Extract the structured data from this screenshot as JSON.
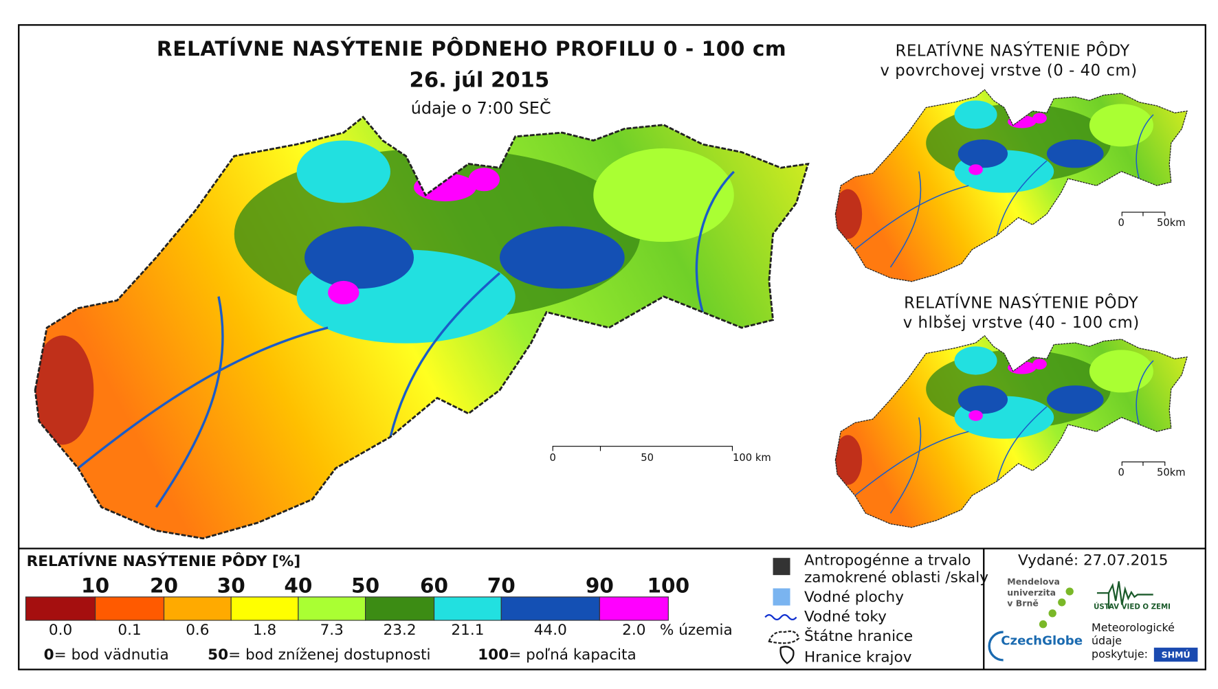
{
  "title": "RELATÍVNE NASÝTENIE PÔDNEHO PROFILU 0 - 100 cm",
  "date": "26. júl 2015",
  "time_note": "údaje o 7:00 SEČ",
  "main_scale": [
    "0",
    "50",
    "100 km"
  ],
  "insets": [
    {
      "title": "RELATÍVNE NASÝTENIE PÔDY",
      "subtitle": "v povrchovej vrstve (0 - 40 cm)",
      "scale": [
        "0",
        "50km"
      ]
    },
    {
      "title": "RELATÍVNE NASÝTENIE PÔDY",
      "subtitle": "v hlbšej vrstve (40 - 100 cm)",
      "scale": [
        "0",
        "50km"
      ]
    }
  ],
  "legend": {
    "title": "RELATÍVNE NASÝTENIE PÔDY [%]",
    "breaks": [
      "10",
      "20",
      "30",
      "40",
      "50",
      "60",
      "70",
      "90",
      "100"
    ],
    "colors": [
      "#a50f0f",
      "#ff5a00",
      "#ffaa00",
      "#ffff00",
      "#aaff33",
      "#3c8c14",
      "#22e0e0",
      "#1450b4",
      "#ff00ff"
    ],
    "shares": [
      "0.0",
      "0.1",
      "0.6",
      "1.8",
      "7.3",
      "23.2",
      "21.1",
      "44.0",
      "2.0"
    ],
    "shares_unit": "% územia",
    "notes": [
      {
        "key": "0",
        "text": "= bod vädnutia"
      },
      {
        "key": "50",
        "text": "= bod zníženej dostupnosti"
      },
      {
        "key": "100",
        "text": "= poľná kapacita"
      }
    ]
  },
  "symbols": [
    "Antropogénne a trvalo",
    "zamokrené oblasti /skaly",
    "Vodné plochy",
    "Vodné toky",
    "Štátne hranice",
    "Hranice krajov"
  ],
  "issued": "Vydané: 27.07.2015",
  "credits": {
    "mendel": [
      "Mendelova",
      "univerzita",
      "v Brně"
    ],
    "czechglobe": "CzechGlobe",
    "uvz": "ÚSTAV VIED O ZEMI",
    "meteo": [
      "Meteorologické",
      "údaje",
      "poskytuje:"
    ],
    "shmu": "SHMÚ"
  }
}
